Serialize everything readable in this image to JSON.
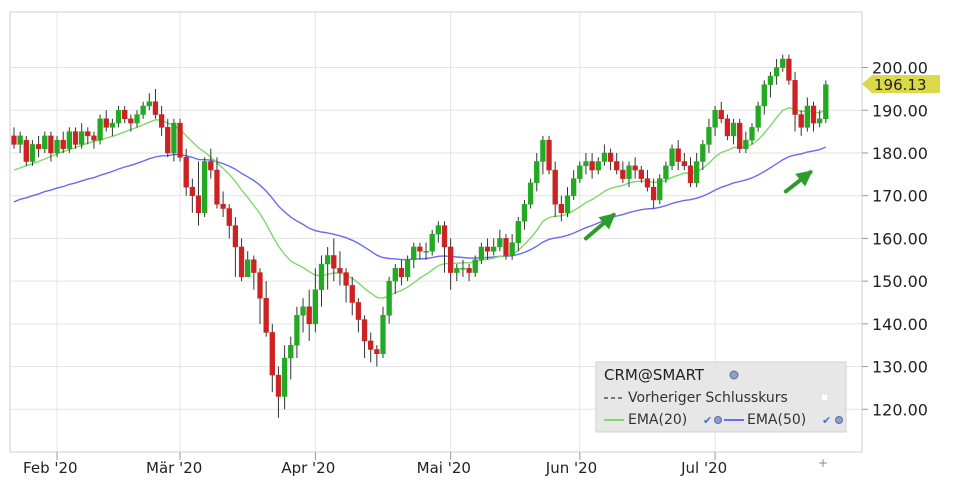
{
  "chart_data": {
    "type": "candlestick",
    "symbol": "CRM@SMART",
    "y_range": [
      110,
      213
    ],
    "y_ticks": [
      "120.00",
      "130.00",
      "140.00",
      "150.00",
      "160.00",
      "170.00",
      "180.00",
      "190.00",
      "200.00"
    ],
    "x_labels": [
      "Feb '20",
      "Mär '20",
      "Apr '20",
      "Mai '20",
      "Jun '20",
      "Jul '20"
    ],
    "last_price": 196.13,
    "last_price_label": "196.13",
    "grid": true,
    "legend_position": "bottom-right",
    "colors": {
      "up": "#22aa22",
      "down": "#cc2222",
      "ema20": "#7fd96b",
      "ema50": "#6a6af0",
      "last_label_bg": "#d9d94a",
      "arrow": "#2a9d2a"
    },
    "candles": [
      [
        184,
        182,
        186,
        181
      ],
      [
        182,
        184,
        185,
        180
      ],
      [
        183,
        178,
        184,
        177
      ],
      [
        178,
        182,
        183,
        177
      ],
      [
        182,
        181,
        184,
        179
      ],
      [
        181,
        184,
        185,
        180
      ],
      [
        184,
        180,
        185,
        178
      ],
      [
        180,
        183,
        184,
        179
      ],
      [
        183,
        181,
        185,
        180
      ],
      [
        181,
        185,
        186,
        180
      ],
      [
        185,
        182,
        186,
        181
      ],
      [
        182,
        185,
        187,
        181
      ],
      [
        185,
        184,
        186,
        182
      ],
      [
        184,
        183,
        185,
        181
      ],
      [
        183,
        188,
        189,
        182
      ],
      [
        188,
        186,
        190,
        185
      ],
      [
        186,
        187,
        188,
        184
      ],
      [
        187,
        190,
        191,
        186
      ],
      [
        190,
        188,
        191,
        187
      ],
      [
        188,
        187,
        189,
        185
      ],
      [
        187,
        189,
        190,
        186
      ],
      [
        189,
        191,
        192,
        188
      ],
      [
        191,
        192,
        194,
        190
      ],
      [
        192,
        189,
        195,
        188
      ],
      [
        189,
        186,
        191,
        184
      ],
      [
        186,
        180,
        188,
        179
      ],
      [
        180,
        187,
        188,
        178
      ],
      [
        187,
        179,
        188,
        178
      ],
      [
        179,
        172,
        181,
        170
      ],
      [
        172,
        170,
        174,
        166
      ],
      [
        170,
        166,
        178,
        163
      ],
      [
        166,
        178,
        179,
        165
      ],
      [
        178,
        176,
        181,
        174
      ],
      [
        176,
        168,
        179,
        167
      ],
      [
        168,
        167,
        171,
        165
      ],
      [
        167,
        163,
        168,
        160
      ],
      [
        163,
        158,
        165,
        151
      ],
      [
        158,
        151,
        160,
        150
      ],
      [
        151,
        155,
        157,
        153
      ],
      [
        155,
        152,
        156,
        148
      ],
      [
        152,
        146,
        153,
        140
      ],
      [
        146,
        138,
        150,
        137
      ],
      [
        138,
        128,
        140,
        124
      ],
      [
        128,
        123,
        130,
        118
      ],
      [
        123,
        132,
        135,
        120
      ],
      [
        132,
        135,
        137,
        127
      ],
      [
        135,
        142,
        144,
        132
      ],
      [
        142,
        144,
        146,
        138
      ],
      [
        144,
        140,
        148,
        136
      ],
      [
        140,
        148,
        153,
        138
      ],
      [
        148,
        154,
        156,
        144
      ],
      [
        154,
        156,
        158,
        148
      ],
      [
        156,
        153,
        160,
        150
      ],
      [
        153,
        152,
        157,
        149
      ],
      [
        152,
        149,
        153,
        145
      ],
      [
        149,
        145,
        151,
        142
      ],
      [
        145,
        141,
        146,
        138
      ],
      [
        141,
        136,
        142,
        132
      ],
      [
        136,
        134,
        138,
        131
      ],
      [
        134,
        133,
        135,
        130
      ],
      [
        133,
        142,
        144,
        132
      ],
      [
        142,
        150,
        151,
        140
      ],
      [
        150,
        153,
        154,
        147
      ],
      [
        153,
        151,
        155,
        149
      ],
      [
        151,
        155,
        156,
        150
      ],
      [
        155,
        158,
        159,
        153
      ],
      [
        158,
        157,
        159,
        155
      ],
      [
        157,
        157,
        159,
        155
      ],
      [
        157,
        161,
        162,
        156
      ],
      [
        161,
        163,
        164,
        159
      ],
      [
        163,
        158,
        164,
        152
      ],
      [
        158,
        152,
        160,
        148
      ],
      [
        152,
        153,
        154,
        150
      ],
      [
        153,
        153,
        155,
        151
      ],
      [
        153,
        152,
        154,
        150
      ],
      [
        152,
        155,
        156,
        151
      ],
      [
        155,
        158,
        159,
        154
      ],
      [
        158,
        157,
        160,
        155
      ],
      [
        157,
        158,
        160,
        156
      ],
      [
        158,
        160,
        162,
        157
      ],
      [
        160,
        156,
        161,
        155
      ],
      [
        156,
        159,
        161,
        155
      ],
      [
        159,
        164,
        165,
        157
      ],
      [
        164,
        168,
        169,
        162
      ],
      [
        168,
        173,
        174,
        167
      ],
      [
        173,
        178,
        180,
        171
      ],
      [
        178,
        183,
        184,
        175
      ],
      [
        183,
        176,
        184,
        175
      ],
      [
        176,
        168,
        178,
        165
      ],
      [
        168,
        166,
        170,
        164
      ],
      [
        166,
        170,
        172,
        165
      ],
      [
        170,
        174,
        176,
        169
      ],
      [
        174,
        177,
        178,
        173
      ],
      [
        177,
        178,
        180,
        175
      ],
      [
        178,
        176,
        180,
        174
      ],
      [
        176,
        178,
        179,
        175
      ],
      [
        178,
        180,
        182,
        177
      ],
      [
        180,
        178,
        181,
        176
      ],
      [
        178,
        176,
        180,
        175
      ],
      [
        176,
        174,
        178,
        173
      ],
      [
        174,
        177,
        178,
        172
      ],
      [
        177,
        176,
        179,
        174
      ],
      [
        176,
        174,
        177,
        173
      ],
      [
        174,
        172,
        176,
        171
      ],
      [
        172,
        169,
        174,
        167
      ],
      [
        169,
        174,
        175,
        168
      ],
      [
        174,
        177,
        178,
        173
      ],
      [
        177,
        181,
        182,
        176
      ],
      [
        181,
        178,
        183,
        176
      ],
      [
        178,
        177,
        180,
        176
      ],
      [
        177,
        173,
        179,
        172
      ],
      [
        173,
        178,
        180,
        172
      ],
      [
        178,
        182,
        183,
        176
      ],
      [
        182,
        186,
        188,
        180
      ],
      [
        186,
        190,
        191,
        184
      ],
      [
        190,
        188,
        192,
        187
      ],
      [
        188,
        184,
        189,
        183
      ],
      [
        184,
        187,
        188,
        182
      ],
      [
        187,
        181,
        188,
        180
      ],
      [
        181,
        183,
        185,
        180
      ],
      [
        183,
        186,
        187,
        182
      ],
      [
        186,
        191,
        192,
        185
      ],
      [
        191,
        196,
        197,
        189
      ],
      [
        196,
        198,
        199,
        193
      ],
      [
        198,
        200,
        202,
        196
      ],
      [
        200,
        202,
        203,
        199
      ],
      [
        202,
        197,
        203,
        196
      ],
      [
        197,
        189,
        199,
        185
      ],
      [
        189,
        186,
        190,
        184
      ],
      [
        186,
        191,
        193,
        185
      ],
      [
        191,
        187,
        192,
        185
      ],
      [
        187,
        188,
        190,
        186
      ],
      [
        188,
        196,
        197,
        187
      ]
    ],
    "ema20": [
      176,
      176.5,
      177,
      177.5,
      178,
      178.6,
      179.2,
      179.8,
      180.3,
      180.8,
      181.3,
      181.8,
      182.3,
      182.7,
      183.1,
      183.5,
      183.9,
      184.4,
      184.9,
      185.5,
      186,
      186.6,
      187.2,
      187.8,
      187.6,
      187,
      186.5,
      185.5,
      184,
      182.6,
      181.2,
      180.2,
      179,
      177.7,
      176.4,
      175,
      173.3,
      171.3,
      169.6,
      167.7,
      165.8,
      163.4,
      160.7,
      158.2,
      156.3,
      154.7,
      153.9,
      153.2,
      152.2,
      151.4,
      151.2,
      151.6,
      151.9,
      151.9,
      151.5,
      150.6,
      149.6,
      148.3,
      147.2,
      146.2,
      146,
      146.6,
      147.3,
      147.8,
      148.6,
      149.6,
      150.7,
      151.6,
      152.6,
      153.6,
      154.1,
      154.1,
      154.2,
      154.3,
      154.3,
      154.5,
      154.9,
      155.1,
      155.4,
      155.8,
      155.9,
      156.2,
      157.2,
      158.6,
      160.1,
      161.9,
      164,
      164.9,
      165.2,
      165.3,
      165.7,
      166.5,
      167.4,
      168.4,
      169.1,
      170,
      171,
      171.7,
      172.1,
      172.4,
      173,
      173.3,
      173.4,
      173.4,
      173.1,
      173.2,
      173.6,
      174.3,
      174.8,
      175.3,
      175.2,
      175.6,
      176.4,
      177.6,
      179.1,
      180.1,
      180.6,
      181.3,
      181.3,
      181.5,
      182,
      183.1,
      184.6,
      186.4,
      188.3,
      190,
      190.6,
      190.2,
      189.7,
      189.8,
      189.5,
      189.4,
      190.1
    ]
  }
}
